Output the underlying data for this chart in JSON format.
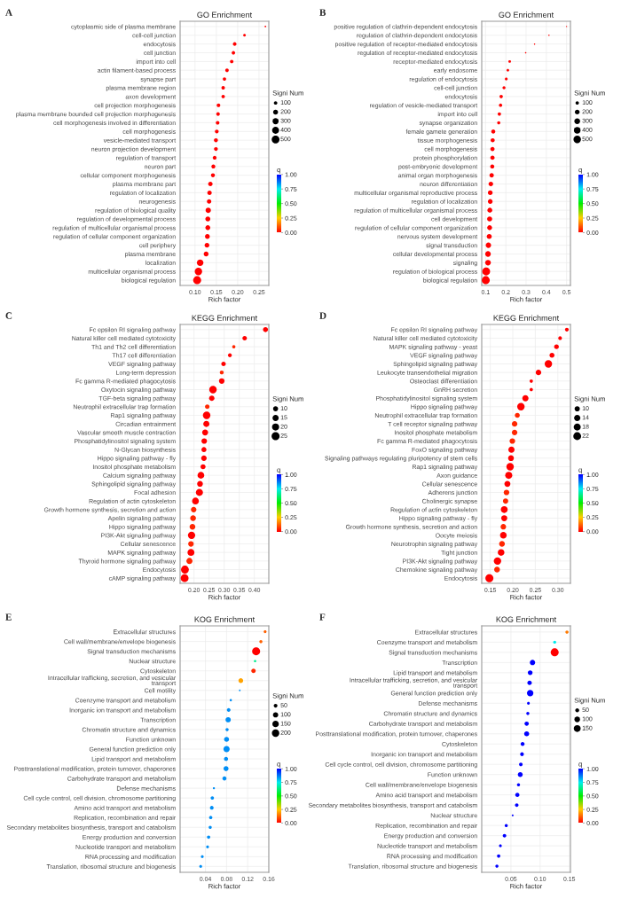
{
  "chart_data": [
    {
      "type": "bubble",
      "title": "GO Enrichment",
      "xlabel": "Rich factor",
      "annotations": [
        "A"
      ],
      "orientation": "horizontal",
      "grid": true,
      "legend_title": "Signi Num",
      "clabel": "q",
      "clim": [
        0,
        1
      ],
      "cticks": [
        {
          "value": 0,
          "label": "0.00"
        },
        {
          "value": 0.25,
          "label": "0.25"
        },
        {
          "value": 0.5,
          "label": "0.50"
        },
        {
          "value": 0.75,
          "label": "0.75"
        },
        {
          "value": 1,
          "label": "1.00"
        }
      ],
      "size_legend": [
        100,
        200,
        300,
        400,
        500
      ],
      "xlim": [
        0.065,
        0.273
      ],
      "xticks": [
        {
          "value": 0.1,
          "label": "0.10"
        },
        {
          "value": 0.15,
          "label": "0.15"
        },
        {
          "value": 0.2,
          "label": "0.20"
        },
        {
          "value": 0.25,
          "label": "0.25"
        }
      ],
      "categories": [
        "cytoplasmic side of plasma membrane",
        "cell-cell junction",
        "endocytosis",
        "cell junction",
        "import into cell",
        "actin filament-based process",
        "synapse part",
        "plasma membrane region",
        "axon development",
        "cell projection morphogenesis",
        "plasma membrane bounded cell projection morphogenesis",
        "cell morphogenesis involved in differentiation",
        "cell morphogenesis",
        "vesicle-mediated transport",
        "neuron projection development",
        "regulation of transport",
        "neuron part",
        "cellular component morphogenesis",
        "plasma membrane part",
        "regulation of localization",
        "neurogenesis",
        "regulation of biological quality",
        "regulation of developmental process",
        "regulation of multicellular organismal process",
        "regulation of cellular component organization",
        "cell periphery",
        "plasma membrane",
        "localization",
        "multicellular organismal process",
        "biological regulation"
      ],
      "values": [
        0.265,
        0.216,
        0.193,
        0.19,
        0.186,
        0.175,
        0.169,
        0.166,
        0.166,
        0.155,
        0.154,
        0.153,
        0.151,
        0.149,
        0.149,
        0.146,
        0.143,
        0.142,
        0.136,
        0.134,
        0.133,
        0.131,
        0.13,
        0.13,
        0.129,
        0.128,
        0.126,
        0.112,
        0.108,
        0.105
      ],
      "sizes": [
        20,
        60,
        110,
        100,
        100,
        100,
        90,
        100,
        100,
        110,
        110,
        110,
        120,
        130,
        120,
        120,
        130,
        130,
        160,
        160,
        160,
        230,
        200,
        200,
        190,
        190,
        190,
        350,
        450,
        520
      ],
      "cvalues": [
        0,
        0,
        0,
        0,
        0,
        0,
        0,
        0,
        0,
        0,
        0,
        0,
        0,
        0,
        0,
        0,
        0,
        0,
        0,
        0,
        0,
        0,
        0,
        0,
        0,
        0,
        0,
        0,
        0,
        0
      ]
    },
    {
      "type": "bubble",
      "title": "GO Enrichment",
      "xlabel": "Rich factor",
      "annotations": [
        "B"
      ],
      "orientation": "horizontal",
      "grid": true,
      "legend_title": "Signi Num",
      "clabel": "q",
      "clim": [
        0,
        1
      ],
      "cticks": [
        {
          "value": 0,
          "label": "0.00"
        },
        {
          "value": 0.25,
          "label": "0.25"
        },
        {
          "value": 0.5,
          "label": "0.50"
        },
        {
          "value": 0.75,
          "label": "0.75"
        },
        {
          "value": 1,
          "label": "1.00"
        }
      ],
      "size_legend": [
        100,
        200,
        300,
        400,
        500
      ],
      "xlim": [
        0.081,
        0.519
      ],
      "xticks": [
        0.1,
        0.2,
        0.3,
        0.4,
        0.5
      ],
      "categories": [
        "positive regulation of clathrin-dependent endocytosis",
        "regulation of clathrin-dependent endocytosis",
        "positive regulation of receptor-mediated endocytosis",
        "regulation of receptor-mediated endocytosis",
        "receptor-mediated endocytosis",
        "early endosome",
        "regulation of endocytosis",
        "cell-cell junction",
        "endocytosis",
        "regulation of vesicle-mediated transport",
        "import into cell",
        "synapse organization",
        "female gamete generation",
        "tissue morphogenesis",
        "cell morphogenesis",
        "protein phosphorylation",
        "post-embryonic development",
        "animal organ morphogenesis",
        "neuron differentiation",
        "multicellular organismal reproductive process",
        "regulation of localization",
        "regulation of multicellular organismal process",
        "cell development",
        "regulation of cellular component organization",
        "nervous system development",
        "signal transduction",
        "cellular developmental process",
        "signaling",
        "regulation of biological process",
        "biological regulation"
      ],
      "values": [
        0.5,
        0.413,
        0.342,
        0.298,
        0.219,
        0.21,
        0.202,
        0.191,
        0.177,
        0.174,
        0.168,
        0.165,
        0.138,
        0.135,
        0.134,
        0.134,
        0.133,
        0.13,
        0.126,
        0.123,
        0.123,
        0.121,
        0.12,
        0.12,
        0.118,
        0.114,
        0.112,
        0.112,
        0.103,
        0.101
      ],
      "sizes": [
        10,
        15,
        15,
        20,
        60,
        60,
        70,
        80,
        100,
        100,
        100,
        90,
        150,
        150,
        160,
        160,
        150,
        170,
        190,
        200,
        200,
        220,
        230,
        220,
        230,
        260,
        280,
        280,
        550,
        570
      ],
      "cvalues": [
        0,
        0,
        0,
        0,
        0,
        0,
        0,
        0,
        0,
        0,
        0,
        0,
        0,
        0,
        0,
        0,
        0,
        0,
        0,
        0,
        0,
        0,
        0,
        0,
        0,
        0,
        0,
        0,
        0,
        0
      ]
    },
    {
      "type": "bubble",
      "title": "KEGG Enrichment",
      "xlabel": "Rich factor",
      "annotations": [
        "C"
      ],
      "orientation": "horizontal",
      "grid": true,
      "legend_title": "Signi Num",
      "clabel": "q",
      "clim": [
        0,
        1
      ],
      "cticks": [
        {
          "value": 0,
          "label": "0.00"
        },
        {
          "value": 0.25,
          "label": "0.25"
        },
        {
          "value": 0.5,
          "label": "0.50"
        },
        {
          "value": 0.75,
          "label": "0.75"
        },
        {
          "value": 1,
          "label": "1.00"
        }
      ],
      "size_legend": [
        10,
        15,
        20,
        25
      ],
      "xlim": [
        0.154,
        0.448
      ],
      "xticks": [
        {
          "value": 0.2,
          "label": "0.20"
        },
        {
          "value": 0.25,
          "label": "0.25"
        },
        {
          "value": 0.3,
          "label": "0.30"
        },
        {
          "value": 0.35,
          "label": "0.35"
        },
        {
          "value": 0.4,
          "label": "0.40"
        }
      ],
      "categories": [
        "Fc epsilon RI signaling pathway",
        "Natural killer cell mediated cytotoxicity",
        "Th1 and Th2 cell differentiation",
        "Th17 cell differentiation",
        "VEGF signaling pathway",
        "Long-term depression",
        "Fc gamma R-mediated phagocytosis",
        "Oxytocin signaling pathway",
        "TGF-beta signaling pathway",
        "Neutrophil extracellular trap formation",
        "Rap1 signaling pathway",
        "Circadian entrainment",
        "Vascular smooth muscle contraction",
        "Phosphatidylinositol signaling system",
        "N-Glycan biosynthesis",
        "Hippo signaling pathway - fly",
        "Inositol phosphate metabolism",
        "Calcium signaling pathway",
        "Sphingolipid signaling pathway",
        "Focal adhesion",
        "Regulation of actin cytoskeleton",
        "Growth hormone synthesis, secretion and action",
        "Apelin signaling pathway",
        "Hippo signaling pathway",
        "PI3K-Akt signaling pathway",
        "Cellular senescence",
        "MAPK signaling pathway",
        "Thyroid hormone signaling pathway",
        "Endocytosis",
        "cAMP signaling pathway"
      ],
      "values": [
        0.437,
        0.368,
        0.332,
        0.319,
        0.298,
        0.292,
        0.292,
        0.263,
        0.259,
        0.244,
        0.242,
        0.241,
        0.237,
        0.234,
        0.233,
        0.233,
        0.23,
        0.223,
        0.22,
        0.218,
        0.205,
        0.199,
        0.197,
        0.195,
        0.192,
        0.19,
        0.19,
        0.185,
        0.17,
        0.169
      ],
      "sizes": [
        10,
        8,
        4,
        6,
        8,
        6,
        12,
        22,
        11,
        8,
        22,
        15,
        14,
        12,
        10,
        12,
        10,
        18,
        13,
        20,
        18,
        12,
        13,
        13,
        21,
        12,
        19,
        15,
        24,
        24
      ],
      "cvalues": [
        0,
        0,
        0.05,
        0,
        0,
        0.05,
        0,
        0,
        0,
        0.05,
        0,
        0,
        0,
        0,
        0,
        0,
        0,
        0,
        0,
        0,
        0,
        0.05,
        0.05,
        0.05,
        0,
        0.05,
        0,
        0.05,
        0,
        0
      ]
    },
    {
      "type": "bubble",
      "title": "KEGG Enrichment",
      "xlabel": "Rich factor",
      "annotations": [
        "D"
      ],
      "orientation": "horizontal",
      "grid": true,
      "legend_title": "Signi Num",
      "clabel": "q",
      "clim": [
        0,
        1
      ],
      "cticks": [
        {
          "value": 0,
          "label": "0.00"
        },
        {
          "value": 0.25,
          "label": "0.25"
        },
        {
          "value": 0.5,
          "label": "0.50"
        },
        {
          "value": 0.75,
          "label": "0.75"
        },
        {
          "value": 1,
          "label": "1.00"
        }
      ],
      "size_legend": [
        10,
        14,
        18,
        22
      ],
      "xlim": [
        0.131,
        0.328
      ],
      "xticks": [
        0.15,
        {
          "value": 0.2,
          "label": "0.20"
        },
        0.25,
        {
          "value": 0.3,
          "label": "0.30"
        }
      ],
      "categories": [
        "Fc epsilon RI signaling pathway",
        "Natural killer cell mediated cytotoxicity",
        "MAPK signaling pathway - yeast",
        "VEGF signaling pathway",
        "Sphingolipid signaling pathway",
        "Leukocyte transendothelial migration",
        "Osteoclast differentiation",
        "GnRH secretion",
        "Phosphatidylinositol signaling system",
        "Hippo signaling pathway",
        "Neutrophil extracellular trap formation",
        "T cell receptor signaling pathway",
        "Inositol phosphate metabolism",
        "Fc gamma R-mediated phagocytosis",
        "FoxO signaling pathway",
        "Signaling pathways regulating pluripotency of stem cells",
        "Rap1 signaling pathway",
        "Axon guidance",
        "Cellular senescence",
        "Adherens junction",
        "Cholinergic synapse",
        "Regulation of actin cytoskeleton",
        "Hippo signaling pathway - fly",
        "Growth hormone synthesis, secretion and action",
        "Oocyte meiosis",
        "Neurotrophin signaling pathway",
        "Tight junction",
        "PI3K-Akt signaling pathway",
        "Chemokine signaling pathway",
        "Endocytosis"
      ],
      "values": [
        0.32,
        0.305,
        0.297,
        0.287,
        0.279,
        0.257,
        0.241,
        0.241,
        0.228,
        0.218,
        0.21,
        0.204,
        0.204,
        0.199,
        0.197,
        0.196,
        0.194,
        0.191,
        0.188,
        0.186,
        0.184,
        0.181,
        0.181,
        0.179,
        0.179,
        0.176,
        0.174,
        0.166,
        0.165,
        0.148
      ],
      "sizes": [
        5,
        5,
        8,
        9,
        20,
        11,
        4,
        4,
        14,
        20,
        9,
        11,
        11,
        11,
        14,
        12,
        20,
        18,
        13,
        11,
        10,
        17,
        13,
        11,
        16,
        12,
        16,
        20,
        12,
        23
      ],
      "cvalues": [
        0,
        0,
        0,
        0,
        0,
        0,
        0,
        0,
        0,
        0,
        0.05,
        0.05,
        0.05,
        0.05,
        0,
        0,
        0,
        0,
        0,
        0.05,
        0.05,
        0,
        0,
        0.05,
        0,
        0.05,
        0,
        0,
        0.05,
        0
      ]
    },
    {
      "type": "bubble",
      "title": "KOG Enrichment",
      "xlabel": "Rich factor",
      "annotations": [
        "E"
      ],
      "orientation": "horizontal",
      "grid": true,
      "legend_title": "Signi Num",
      "clabel": "q",
      "clim": [
        0,
        1
      ],
      "cticks": [
        {
          "value": 0,
          "label": "0.00"
        },
        {
          "value": 0.25,
          "label": "0.25"
        },
        {
          "value": 0.5,
          "label": "0.50"
        },
        {
          "value": 0.75,
          "label": "0.75"
        },
        {
          "value": 1,
          "label": "1.00"
        }
      ],
      "size_legend": [
        50,
        100,
        150,
        200
      ],
      "xlim": [
        -0.008,
        0.16
      ],
      "xticks": [
        0.04,
        0.08,
        0.12,
        0.16
      ],
      "categories": [
        "Extracellular structures",
        "Cell wall/membrane/envelope biogenesis",
        "Signal transduction mechanisms",
        "Nuclear structure",
        "Cytoskeleton",
        "Intracellular trafficking, secretion, and vesicular\ntransport",
        "Cell motility",
        "Coenzyme transport and metabolism",
        "Inorganic ion transport and metabolism",
        "Transcription",
        "Chromatin structure and dynamics",
        "Function unknown",
        "General function prediction only",
        "Lipid transport and metabolism",
        "Posttranslational modification, protein turnover, chaperones",
        "Carbohydrate transport and metabolism",
        "Defense mechanisms",
        "Cell cycle control, cell division, chromosome partitioning",
        "Amino acid transport and metabolism",
        "Replication, recombination and repair",
        "Secondary metabolites biosynthesis, transport and catabolism",
        "Energy production and conversion",
        "Nucleotide transport and metabolism",
        "RNA processing and modification",
        "Translation, ribosomal structure and biogenesis"
      ],
      "values": [
        0.153,
        0.145,
        0.136,
        0.134,
        0.131,
        0.107,
        0.105,
        0.088,
        0.084,
        0.083,
        0.081,
        0.08,
        0.08,
        0.079,
        0.079,
        0.076,
        0.056,
        0.053,
        0.052,
        0.05,
        0.049,
        0.046,
        0.044,
        0.034,
        0.031
      ],
      "sizes": [
        30,
        35,
        230,
        20,
        70,
        80,
        10,
        20,
        50,
        100,
        35,
        90,
        140,
        60,
        90,
        60,
        15,
        40,
        50,
        40,
        35,
        40,
        30,
        30,
        30
      ],
      "cvalues": [
        0.12,
        0.12,
        0,
        0.65,
        0.05,
        0.2,
        0.85,
        0.85,
        0.85,
        0.85,
        0.85,
        0.85,
        0.85,
        0.85,
        0.85,
        0.85,
        0.85,
        0.85,
        0.85,
        0.85,
        0.85,
        0.85,
        0.85,
        0.85,
        0.85
      ]
    },
    {
      "type": "bubble",
      "title": "KOG Enrichment",
      "xlabel": "Rich factor",
      "annotations": [
        "F"
      ],
      "orientation": "horizontal",
      "grid": true,
      "legend_title": "Signi Num",
      "clabel": "q",
      "clim": [
        0,
        1
      ],
      "cticks": [
        {
          "value": 0,
          "label": "0.00"
        },
        {
          "value": 0.25,
          "label": "0.25"
        },
        {
          "value": 0.5,
          "label": "0.50"
        },
        {
          "value": 0.75,
          "label": "0.75"
        },
        {
          "value": 1,
          "label": "1.00"
        }
      ],
      "size_legend": [
        50,
        100,
        150
      ],
      "xlim": [
        0.0,
        0.152
      ],
      "xticks": [
        0.05,
        {
          "value": 0.1,
          "label": "0.10"
        },
        0.15
      ],
      "categories": [
        "Extracellular structures",
        "Coenzyme transport and metabolism",
        "Signal transduction mechanisms",
        "Transcription",
        "Lipid transport and metabolism",
        "Intracellular trafficking, secretion, and vesicular\ntransport",
        "General function prediction only",
        "Defense mechanisms",
        "Chromatin structure and dynamics",
        "Carbohydrate transport and metabolism",
        "Posttranslational modification, protein turnover, chaperones",
        "Cytoskeleton",
        "Inorganic ion transport and metabolism",
        "Cell cycle control, cell division, chromosome partitioning",
        "Function unknown",
        "Cell wall/membrane/envelope biogenesis",
        "Amino acid transport and metabolism",
        "Secondary metabolites biosynthesis, transport and catabolism",
        "Nuclear structure",
        "Replication, recombination and repair",
        "Energy production and conversion",
        "Nucleotide transport and metabolism",
        "RNA processing and modification",
        "Translation, ribosomal structure and biogenesis"
      ],
      "values": [
        0.146,
        0.125,
        0.125,
        0.087,
        0.083,
        0.082,
        0.083,
        0.08,
        0.079,
        0.077,
        0.077,
        0.07,
        0.069,
        0.067,
        0.066,
        0.063,
        0.061,
        0.06,
        0.053,
        0.042,
        0.039,
        0.032,
        0.029,
        0.026
      ],
      "sizes": [
        30,
        30,
        200,
        90,
        70,
        60,
        130,
        25,
        30,
        55,
        80,
        50,
        45,
        40,
        75,
        30,
        55,
        40,
        10,
        30,
        40,
        25,
        35,
        30
      ],
      "cvalues": [
        0.15,
        0.75,
        0,
        1,
        1,
        1,
        1,
        1,
        1,
        1,
        1,
        1,
        1,
        1,
        1,
        1,
        1,
        1,
        1,
        1,
        1,
        1,
        1,
        1
      ]
    }
  ]
}
